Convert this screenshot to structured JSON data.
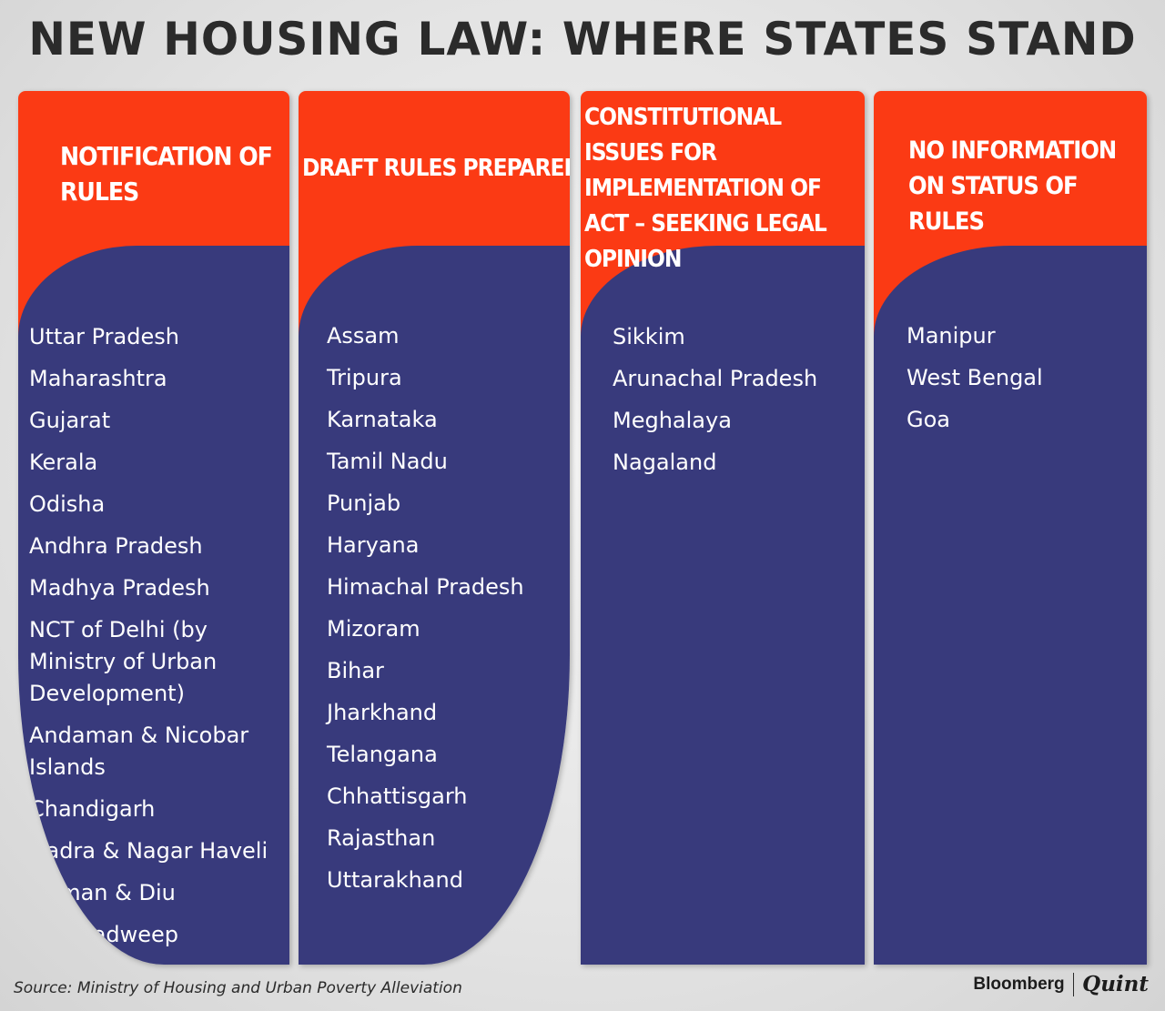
{
  "title": "NEW HOUSING LAW: WHERE STATES STAND",
  "columns": [
    {
      "header": "NOTIFICATION OF RULES",
      "states": [
        "Uttar Pradesh",
        "Maharashtra",
        "Gujarat",
        "Kerala",
        "Odisha",
        "Andhra Pradesh",
        "Madhya Pradesh",
        "NCT of Delhi (by Ministry of Urban Development)",
        "Andaman & Nicobar Islands",
        "Chandigarh",
        "Dadra & Nagar Haveli",
        "Daman & Diu",
        "Lakshadweep"
      ]
    },
    {
      "header": "DRAFT RULES PREPARED",
      "states": [
        "Assam",
        "Tripura",
        "Karnataka",
        "Tamil Nadu",
        "Punjab",
        "Haryana",
        "Himachal Pradesh",
        "Mizoram",
        "Bihar",
        "Jharkhand",
        "Telangana",
        "Chhattisgarh",
        "Rajasthan",
        "Uttarakhand"
      ]
    },
    {
      "header": "CONSTITUTIONAL ISSUES FOR IMPLEMENTATION OF ACT – SEEKING LEGAL OPINION",
      "states": [
        "Sikkim",
        "Arunachal Pradesh",
        "Meghalaya",
        "Nagaland"
      ]
    },
    {
      "header": "NO INFORMATION ON STATUS OF RULES",
      "states": [
        "Manipur",
        "West Bengal",
        "Goa"
      ]
    }
  ],
  "source": "Source: Ministry of Housing and Urban Poverty Alleviation",
  "brand": {
    "left": "Bloomberg",
    "right": "Quint"
  },
  "colors": {
    "header_orange": "#fb3a14",
    "body_navy": "#383a7c",
    "title_gray": "#2b2b2b"
  }
}
